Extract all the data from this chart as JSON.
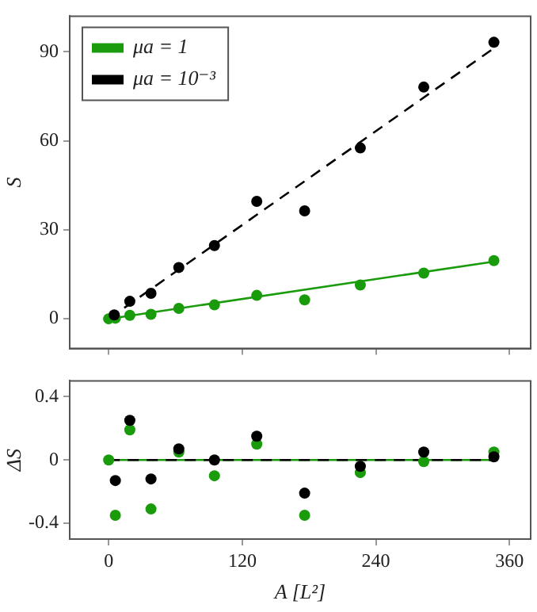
{
  "chart_data": [
    {
      "type": "scatter",
      "ylabel": "S",
      "xlim": [
        -35,
        379
      ],
      "ylim": [
        -10,
        102
      ],
      "xticks": [
        0,
        120,
        240,
        360
      ],
      "yticks": [
        0,
        30,
        60,
        90
      ],
      "tick_labels": "y",
      "grid": false,
      "legend": "top left",
      "marker": "circle",
      "series": [
        {
          "name": "μa = 1",
          "color": "#1a9b0c",
          "x": [
            0,
            6,
            19,
            38,
            63,
            95,
            133,
            176,
            226,
            283,
            346
          ],
          "values": [
            0,
            0.2,
            1.2,
            1.5,
            3.5,
            4.7,
            7.9,
            6.4,
            11.4,
            15.4,
            19.6
          ]
        },
        {
          "name": "μa = 10⁻³",
          "color": "#000000",
          "x": [
            5,
            19,
            38,
            63,
            95,
            133,
            176,
            226,
            283,
            346
          ],
          "values": [
            1.3,
            5.9,
            8.6,
            17.3,
            24.7,
            39.6,
            36.4,
            57.6,
            78.1,
            93.2
          ]
        },
        {
          "type": "line",
          "color": "#1a9b0c",
          "line_style": "solid",
          "marker": "none",
          "x": [
            0,
            346
          ],
          "values": [
            0,
            19.3
          ]
        },
        {
          "type": "line",
          "color": "#000000",
          "line_style": "dashed",
          "marker": "none",
          "x": [
            0,
            346
          ],
          "values": [
            0,
            91.2
          ]
        }
      ]
    },
    {
      "type": "scatter",
      "xlabel": "A [L²]",
      "ylabel": "ΔS",
      "xlim": [
        -35,
        379
      ],
      "ylim": [
        -0.5,
        0.5
      ],
      "xticks": [
        0,
        120,
        240,
        360
      ],
      "yticks": [
        -0.4,
        0,
        0.4
      ],
      "grid": false,
      "legend": false,
      "marker": "circle",
      "series": [
        {
          "color": "#1a9b0c",
          "x": [
            0,
            6,
            19,
            38,
            63,
            95,
            133,
            176,
            226,
            283,
            346
          ],
          "values": [
            0,
            -0.35,
            0.19,
            -0.31,
            0.05,
            -0.1,
            0.1,
            -0.35,
            -0.08,
            -0.01,
            0.05
          ]
        },
        {
          "color": "#000000",
          "x": [
            6,
            19,
            38,
            63,
            95,
            133,
            176,
            226,
            283,
            346
          ],
          "values": [
            -0.13,
            0.25,
            -0.12,
            0.07,
            0,
            0.15,
            -0.21,
            -0.04,
            0.05,
            0.02
          ]
        },
        {
          "type": "line",
          "color": "#1a9b0c",
          "line_style": "solid",
          "marker": "none",
          "x": [
            0,
            346
          ],
          "values": [
            0,
            0
          ]
        },
        {
          "type": "line",
          "color": "#000000",
          "line_style": "dashed",
          "marker": "none",
          "x": [
            0,
            346
          ],
          "values": [
            0,
            0
          ]
        }
      ]
    }
  ]
}
